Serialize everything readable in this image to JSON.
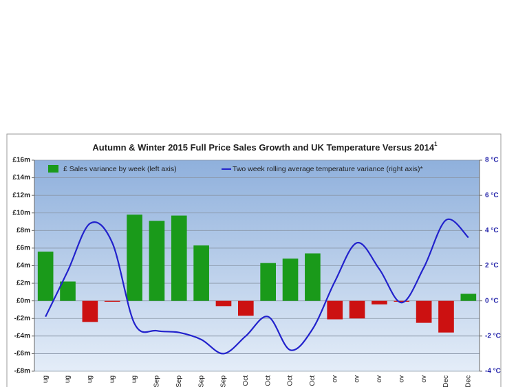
{
  "chart_data": {
    "type": "bar_line",
    "title": "Autumn & Winter 2015 Full Price Sales Growth and UK Temperature Versus 2014",
    "title_superscript": "1",
    "categories": [
      "ug",
      "ug",
      "ug",
      "ug",
      "ug",
      "Sep",
      "Sep",
      "Sep",
      "Sep",
      "Oct",
      "Oct",
      "Oct",
      "Oct",
      "ov",
      "ov",
      "ov",
      "ov",
      "ov",
      "Dec",
      "Dec"
    ],
    "series": [
      {
        "name": "£ Sales variance by week (left axis)",
        "type": "bar",
        "color": "#1a9a1a",
        "negative_color": "#cc1111",
        "values": [
          5.6,
          2.2,
          -2.4,
          -0.1,
          9.8,
          9.1,
          9.7,
          6.3,
          -0.6,
          -1.7,
          4.3,
          4.8,
          5.4,
          -2.1,
          -2.0,
          -0.4,
          -0.1,
          -2.5,
          -3.6,
          0.8
        ]
      },
      {
        "name": "Two week rolling average temperature  variance (right axis)*",
        "type": "line",
        "axis": "y2",
        "color": "#2222cc",
        "values": [
          -0.9,
          1.7,
          4.4,
          3.3,
          -1.3,
          -1.7,
          -1.8,
          -2.2,
          -3.0,
          -2.0,
          -0.9,
          -2.8,
          -1.6,
          1.1,
          3.3,
          1.8,
          -0.1,
          1.9,
          4.6,
          3.6
        ]
      }
    ],
    "ylim": [
      -8,
      16
    ],
    "yticks": [
      {
        "value": -8,
        "label": "-£8m"
      },
      {
        "value": -6,
        "label": "-£6m"
      },
      {
        "value": -4,
        "label": "-£4m"
      },
      {
        "value": -2,
        "label": "-£2m"
      },
      {
        "value": 0,
        "label": "£0m"
      },
      {
        "value": 2,
        "label": "£2m"
      },
      {
        "value": 4,
        "label": "£4m"
      },
      {
        "value": 6,
        "label": "£6m"
      },
      {
        "value": 8,
        "label": "£8m"
      },
      {
        "value": 10,
        "label": "£10m"
      },
      {
        "value": 12,
        "label": "£12m"
      },
      {
        "value": 14,
        "label": "£14m"
      },
      {
        "value": 16,
        "label": "£16m"
      }
    ],
    "y2lim": [
      -4,
      8
    ],
    "y2ticks": [
      {
        "value": -4,
        "label": "-4 °C"
      },
      {
        "value": -2,
        "label": "-2 °C"
      },
      {
        "value": 0,
        "label": "0 °C"
      },
      {
        "value": 2,
        "label": "2 °C"
      },
      {
        "value": 4,
        "label": "4 °C"
      },
      {
        "value": 6,
        "label": "6 °C"
      },
      {
        "value": 8,
        "label": "8 °C"
      }
    ],
    "grid": true
  }
}
